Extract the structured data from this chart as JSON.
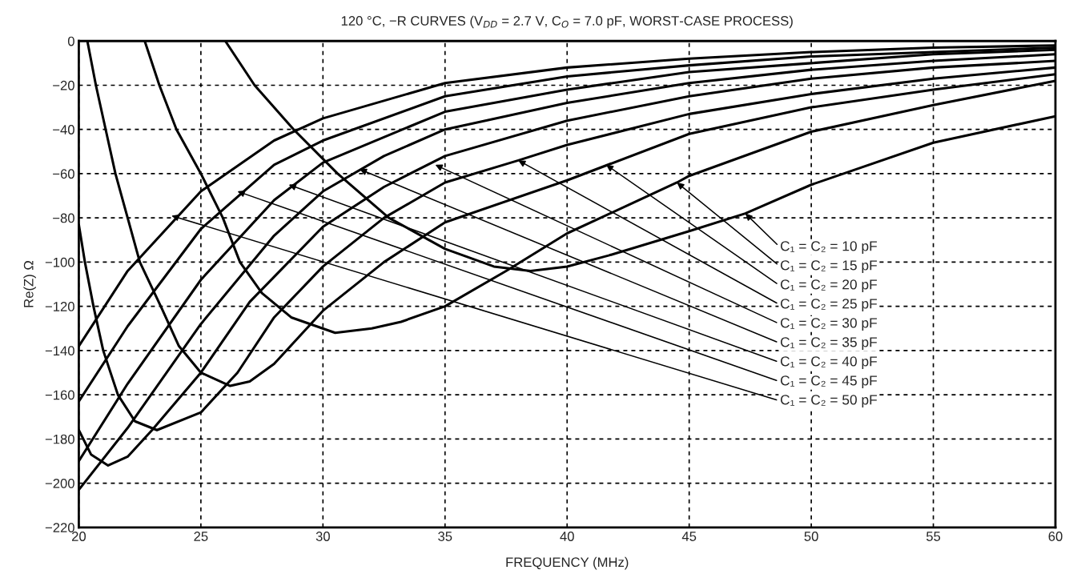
{
  "chart_data": {
    "type": "line",
    "title": "120 °C, −R CURVES (V$_{DD}$ = 2.7 V, C$_{O}$ = 7.0 pF, WORST-CASE PROCESS)",
    "xlabel": "FREQUENCY (MHz)",
    "ylabel": "Re(Z) Ω",
    "xlim": [
      20,
      60
    ],
    "xticks": [
      20,
      25,
      30,
      35,
      40,
      45,
      50,
      55,
      60
    ],
    "ylim": [
      -220,
      0
    ],
    "yticks": [
      -220,
      -200,
      -180,
      -160,
      -140,
      -120,
      -100,
      -80,
      -60,
      -40,
      -20,
      0
    ],
    "grid": true,
    "legend": false,
    "marker": "none",
    "line_style": "solid",
    "series": [
      {
        "color": "#000000",
        "x": [
          26,
          27.2,
          28.8,
          30.6,
          32.7,
          35,
          37,
          38.5,
          40,
          41.7,
          45,
          47.3,
          50,
          55,
          60
        ],
        "values": [
          0,
          -20,
          -40,
          -60,
          -80,
          -94,
          -102,
          -104,
          -102,
          -97,
          -86,
          -78,
          -65,
          -46,
          -34
        ]
      },
      {
        "color": "#000000",
        "x": [
          22.7,
          23.3,
          24,
          25,
          25.9,
          26.6,
          27.5,
          28.7,
          30.5,
          32,
          33.2,
          35,
          37.5,
          40,
          44.5,
          45,
          50,
          55,
          60
        ],
        "values": [
          0,
          -20,
          -40,
          -60,
          -80,
          -100,
          -114,
          -125,
          -132,
          -130,
          -127,
          -120,
          -104,
          -87,
          -64,
          -61,
          -41,
          -29,
          -18
        ]
      },
      {
        "color": "#000000",
        "x": [
          20.35,
          20.7,
          21.1,
          21.5,
          22,
          22.5,
          23.4,
          24.1,
          25,
          26.2,
          27,
          28,
          30,
          32.5,
          35,
          40,
          45,
          50,
          55,
          60
        ],
        "values": [
          0,
          -20,
          -40,
          -60,
          -80,
          -100,
          -121,
          -138,
          -150,
          -156,
          -154,
          -146,
          -122,
          -100,
          -82,
          -63,
          -42,
          -30,
          -22,
          -15
        ]
      },
      {
        "color": "#000000",
        "x": [
          20,
          20.25,
          20.6,
          21,
          21.6,
          22.3,
          23.2,
          25,
          26.5,
          28,
          30,
          32.5,
          35,
          38,
          40,
          45,
          50,
          55,
          60
        ],
        "values": [
          -83,
          -100,
          -120,
          -140,
          -160,
          -172,
          -176,
          -168,
          -150,
          -125,
          -102,
          -80,
          -64,
          -54,
          -47,
          -33,
          -24,
          -17,
          -12
        ]
      },
      {
        "color": "#000000",
        "x": [
          20,
          20.5,
          21.2,
          22,
          23,
          25,
          27,
          30,
          32.5,
          35,
          40,
          45,
          50,
          55,
          60
        ],
        "values": [
          -176,
          -187,
          -192,
          -188,
          -176,
          -150,
          -118,
          -84,
          -66,
          -52,
          -36,
          -25,
          -17,
          -12,
          -9
        ]
      },
      {
        "color": "#000000",
        "x": [
          20,
          22,
          25,
          28,
          30,
          32.5,
          35,
          40,
          45,
          50,
          55,
          60
        ],
        "values": [
          -203,
          -175,
          -128,
          -88,
          -68,
          -52,
          -40,
          -28,
          -19,
          -13,
          -9,
          -6
        ]
      },
      {
        "color": "#000000",
        "x": [
          20,
          22,
          25,
          28,
          30,
          35,
          40,
          45,
          50,
          55,
          60
        ],
        "values": [
          -190,
          -155,
          -108,
          -72,
          -55,
          -32,
          -22,
          -14,
          -10,
          -6,
          -4
        ]
      },
      {
        "color": "#000000",
        "x": [
          20,
          22,
          25,
          28,
          30,
          35,
          40,
          45,
          50,
          55,
          60
        ],
        "values": [
          -163,
          -129,
          -85,
          -56,
          -45,
          -25,
          -16,
          -11,
          -7,
          -5,
          -3
        ]
      },
      {
        "color": "#000000",
        "x": [
          20,
          22,
          25,
          28,
          30,
          35,
          40,
          45,
          50,
          55,
          60
        ],
        "values": [
          -138,
          -104,
          -68,
          -45,
          -35,
          -19,
          -12,
          -8,
          -5,
          -3,
          -2
        ]
      }
    ],
    "annotations": [
      {
        "text": "C₁ = C₂ = 10 pF",
        "x": 47.3,
        "y": -78
      },
      {
        "text": "C₁ = C₂ = 15 pF",
        "x": 44.5,
        "y": -64
      },
      {
        "text": "C₁ = C₂ = 20 pF",
        "x": 41.6,
        "y": -56
      },
      {
        "text": "C₁ = C₂ = 25 pF",
        "x": 38,
        "y": -54
      },
      {
        "text": "C₁ = C₂ = 30 pF",
        "x": 34.6,
        "y": -56
      },
      {
        "text": "C₁ = C₂ = 35 pF",
        "x": 31.5,
        "y": -58
      },
      {
        "text": "C₁ = C₂ = 40 pF",
        "x": 28.6,
        "y": -65
      },
      {
        "text": "C₁ = C₂ = 45 pF",
        "x": 26.5,
        "y": -68
      },
      {
        "text": "C₁ = C₂ = 50 pF",
        "x": 23.8,
        "y": -79
      }
    ]
  }
}
